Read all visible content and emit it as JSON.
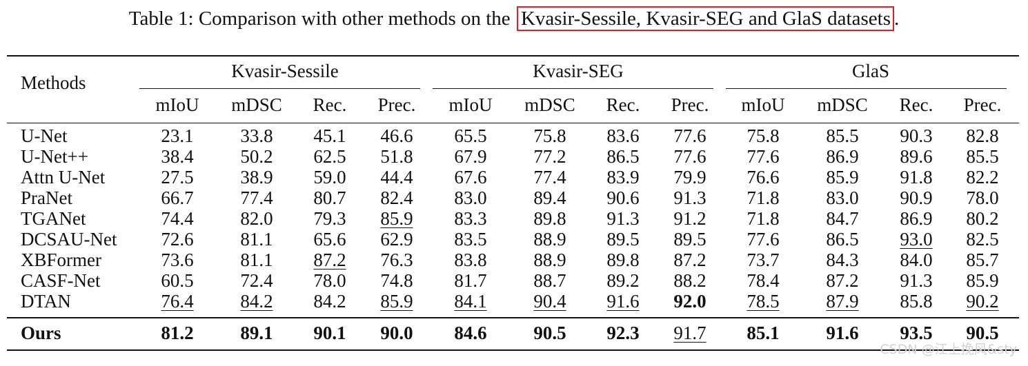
{
  "caption": {
    "prefix": "Table 1: Comparison with other methods on the",
    "highlight": "Kvasir-Sessile, Kvasir-SEG and GlaS datasets",
    "suffix": ".",
    "highlight_color": "#e02020"
  },
  "table": {
    "method_header": "Methods",
    "groups": [
      "Kvasir-Sessile",
      "Kvasir-SEG",
      "GlaS"
    ],
    "metrics": [
      "mIoU",
      "mDSC",
      "Rec.",
      "Prec."
    ],
    "rows": [
      {
        "method": "U-Net",
        "values": [
          "23.1",
          "33.8",
          "45.1",
          "46.6",
          "65.5",
          "75.8",
          "83.6",
          "77.6",
          "75.8",
          "85.5",
          "90.3",
          "82.8"
        ],
        "underline": [],
        "bold": []
      },
      {
        "method": "U-Net++",
        "values": [
          "38.4",
          "50.2",
          "62.5",
          "51.8",
          "67.9",
          "77.2",
          "86.5",
          "77.6",
          "77.6",
          "86.9",
          "89.6",
          "85.5"
        ],
        "underline": [],
        "bold": []
      },
      {
        "method": "Attn U-Net",
        "values": [
          "27.5",
          "38.9",
          "59.0",
          "44.4",
          "67.6",
          "77.4",
          "83.9",
          "79.9",
          "76.6",
          "85.9",
          "91.8",
          "82.2"
        ],
        "underline": [],
        "bold": []
      },
      {
        "method": "PraNet",
        "values": [
          "66.7",
          "77.4",
          "80.7",
          "82.4",
          "83.0",
          "89.4",
          "90.6",
          "91.3",
          "71.8",
          "83.0",
          "90.9",
          "78.0"
        ],
        "underline": [],
        "bold": []
      },
      {
        "method": "TGANet",
        "values": [
          "74.4",
          "82.0",
          "79.3",
          "85.9",
          "83.3",
          "89.8",
          "91.3",
          "91.2",
          "71.8",
          "84.7",
          "86.9",
          "80.2"
        ],
        "underline": [
          3
        ],
        "bold": []
      },
      {
        "method": "DCSAU-Net",
        "values": [
          "72.6",
          "81.1",
          "65.6",
          "62.9",
          "83.5",
          "88.9",
          "89.5",
          "89.5",
          "77.6",
          "86.5",
          "93.0",
          "82.5"
        ],
        "underline": [
          10
        ],
        "bold": []
      },
      {
        "method": "XBFormer",
        "values": [
          "73.6",
          "81.1",
          "87.2",
          "76.3",
          "83.8",
          "88.9",
          "89.8",
          "87.2",
          "73.7",
          "84.3",
          "84.0",
          "85.7"
        ],
        "underline": [
          2
        ],
        "bold": []
      },
      {
        "method": "CASF-Net",
        "values": [
          "60.5",
          "72.4",
          "78.0",
          "74.8",
          "81.7",
          "88.7",
          "89.2",
          "88.2",
          "78.4",
          "87.2",
          "91.3",
          "85.9"
        ],
        "underline": [],
        "bold": []
      },
      {
        "method": "DTAN",
        "values": [
          "76.4",
          "84.2",
          "84.2",
          "85.9",
          "84.1",
          "90.4",
          "91.6",
          "92.0",
          "78.5",
          "87.9",
          "85.8",
          "90.2"
        ],
        "underline": [
          0,
          1,
          3,
          4,
          5,
          6,
          8,
          9,
          11
        ],
        "bold": [
          7
        ]
      }
    ],
    "ours": {
      "method": "Ours",
      "values": [
        "81.2",
        "89.1",
        "90.1",
        "90.0",
        "84.6",
        "90.5",
        "92.3",
        "91.7",
        "85.1",
        "91.6",
        "93.5",
        "90.5"
      ],
      "underline": [
        7
      ],
      "bold": [
        0,
        1,
        2,
        3,
        4,
        5,
        6,
        8,
        9,
        10,
        11
      ]
    }
  },
  "watermark": "CSDN @江上挽风&sty"
}
